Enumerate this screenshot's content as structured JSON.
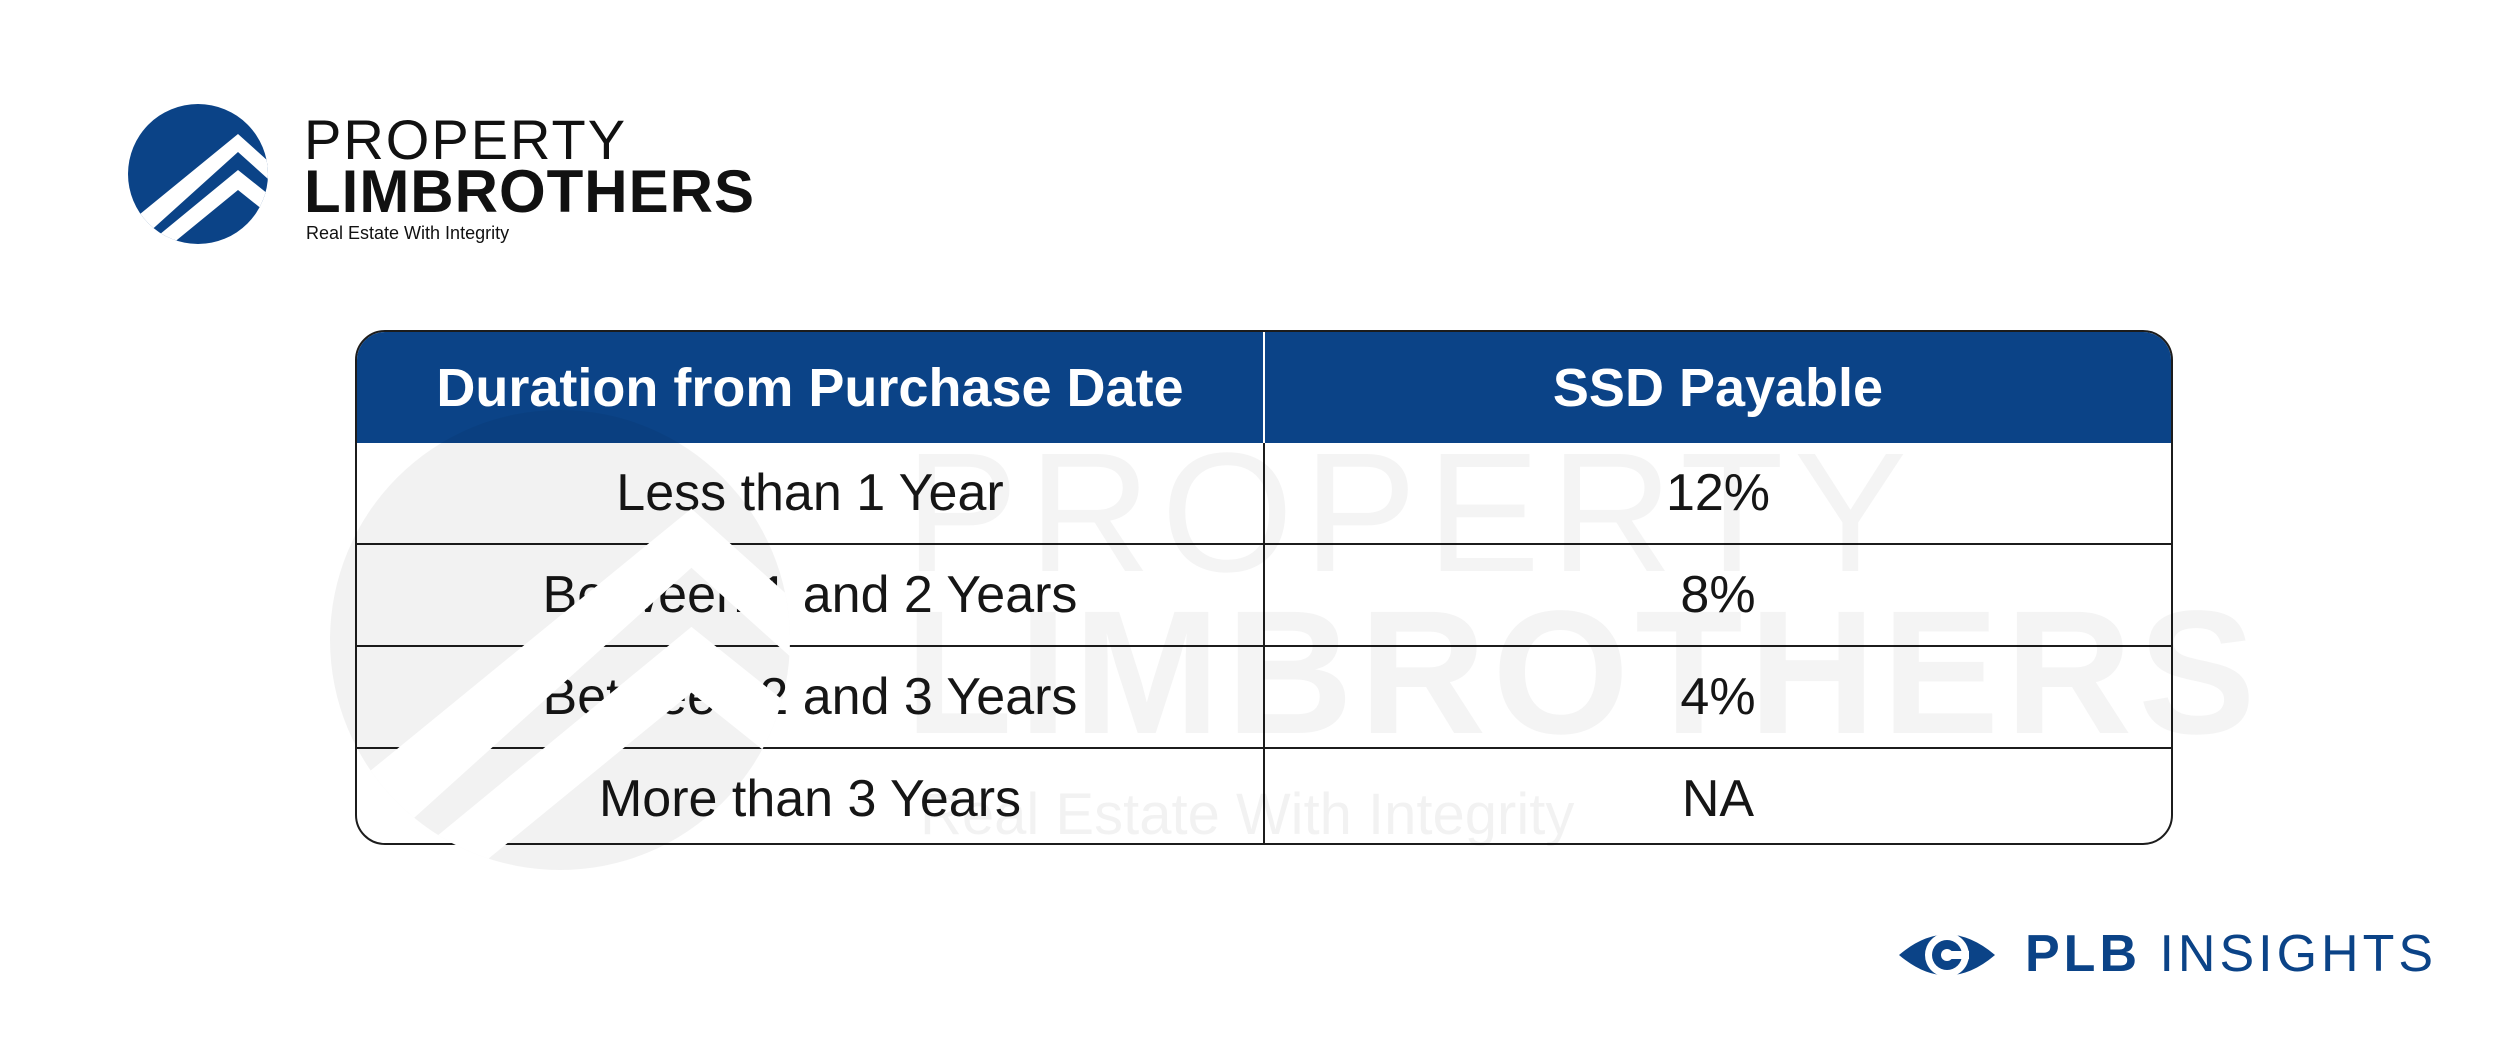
{
  "brand": {
    "line1": "PROPERTY",
    "line2": "LIMBROTHERS",
    "tagline": "Real Estate With Integrity",
    "colors": {
      "primary": "#0b4387",
      "text": "#111111"
    },
    "icon": "chevron-roof-logo-icon"
  },
  "watermark": {
    "line1": "PROPERTY",
    "line2": "LIMBROTHERS",
    "tagline": "Real Estate With Integrity"
  },
  "table": {
    "headers": [
      "Duration from Purchase Date",
      "SSD Payable"
    ],
    "rows": [
      [
        "Less than 1 Year",
        "12%"
      ],
      [
        "Between 1 and 2 Years",
        "8%"
      ],
      [
        "Between 2 and 3 Years",
        "4%"
      ],
      [
        "More than 3 Years",
        "NA"
      ]
    ],
    "header_color": "#0b4387"
  },
  "footer": {
    "brand_strong": "PLB",
    "brand_light": "INSIGHTS",
    "icon": "eye-icon"
  }
}
